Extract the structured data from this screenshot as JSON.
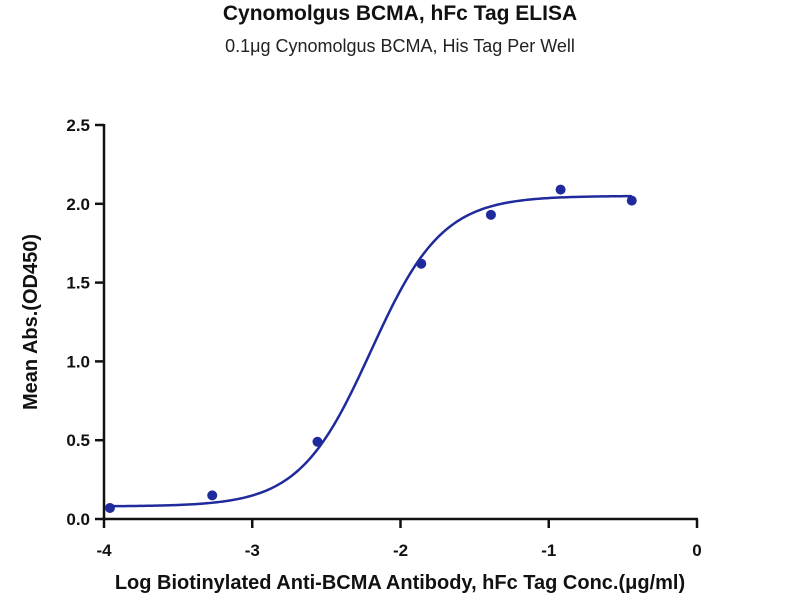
{
  "chart_data": {
    "type": "scatter",
    "title": "Cynomolgus BCMA, hFc Tag ELISA",
    "subtitle": "0.1μg Cynomolgus BCMA, His Tag Per Well",
    "xlabel": "Log Biotinylated Anti-BCMA Antibody, hFc Tag Conc.(μg/ml)",
    "ylabel": "Mean Abs.(OD450)",
    "xlim": [
      -4,
      0
    ],
    "ylim": [
      0,
      2.5
    ],
    "x_ticks": [
      -4,
      -3,
      -2,
      -1,
      0
    ],
    "x_tick_labels": [
      "-4",
      "-3",
      "-2",
      "-1",
      "0"
    ],
    "y_ticks": [
      0,
      0.5,
      1.0,
      1.5,
      2.0,
      2.5
    ],
    "y_tick_labels": [
      "0.0",
      "0.5",
      "1.0",
      "1.5",
      "2.0",
      "2.5"
    ],
    "grid": false,
    "series": [
      {
        "points": [
          {
            "x": -3.96,
            "y": 0.07
          },
          {
            "x": -3.27,
            "y": 0.15
          },
          {
            "x": -2.56,
            "y": 0.49
          },
          {
            "x": -1.86,
            "y": 1.62
          },
          {
            "x": -1.39,
            "y": 1.93
          },
          {
            "x": -0.92,
            "y": 2.09
          },
          {
            "x": -0.44,
            "y": 2.02
          }
        ],
        "fit": {
          "type": "4PL",
          "bottom": 0.08,
          "top": 2.05,
          "logEC50": -2.2,
          "hill": 1.8,
          "x_start": -3.96,
          "x_end": -0.44
        }
      }
    ],
    "color": "#1f2a9c"
  }
}
